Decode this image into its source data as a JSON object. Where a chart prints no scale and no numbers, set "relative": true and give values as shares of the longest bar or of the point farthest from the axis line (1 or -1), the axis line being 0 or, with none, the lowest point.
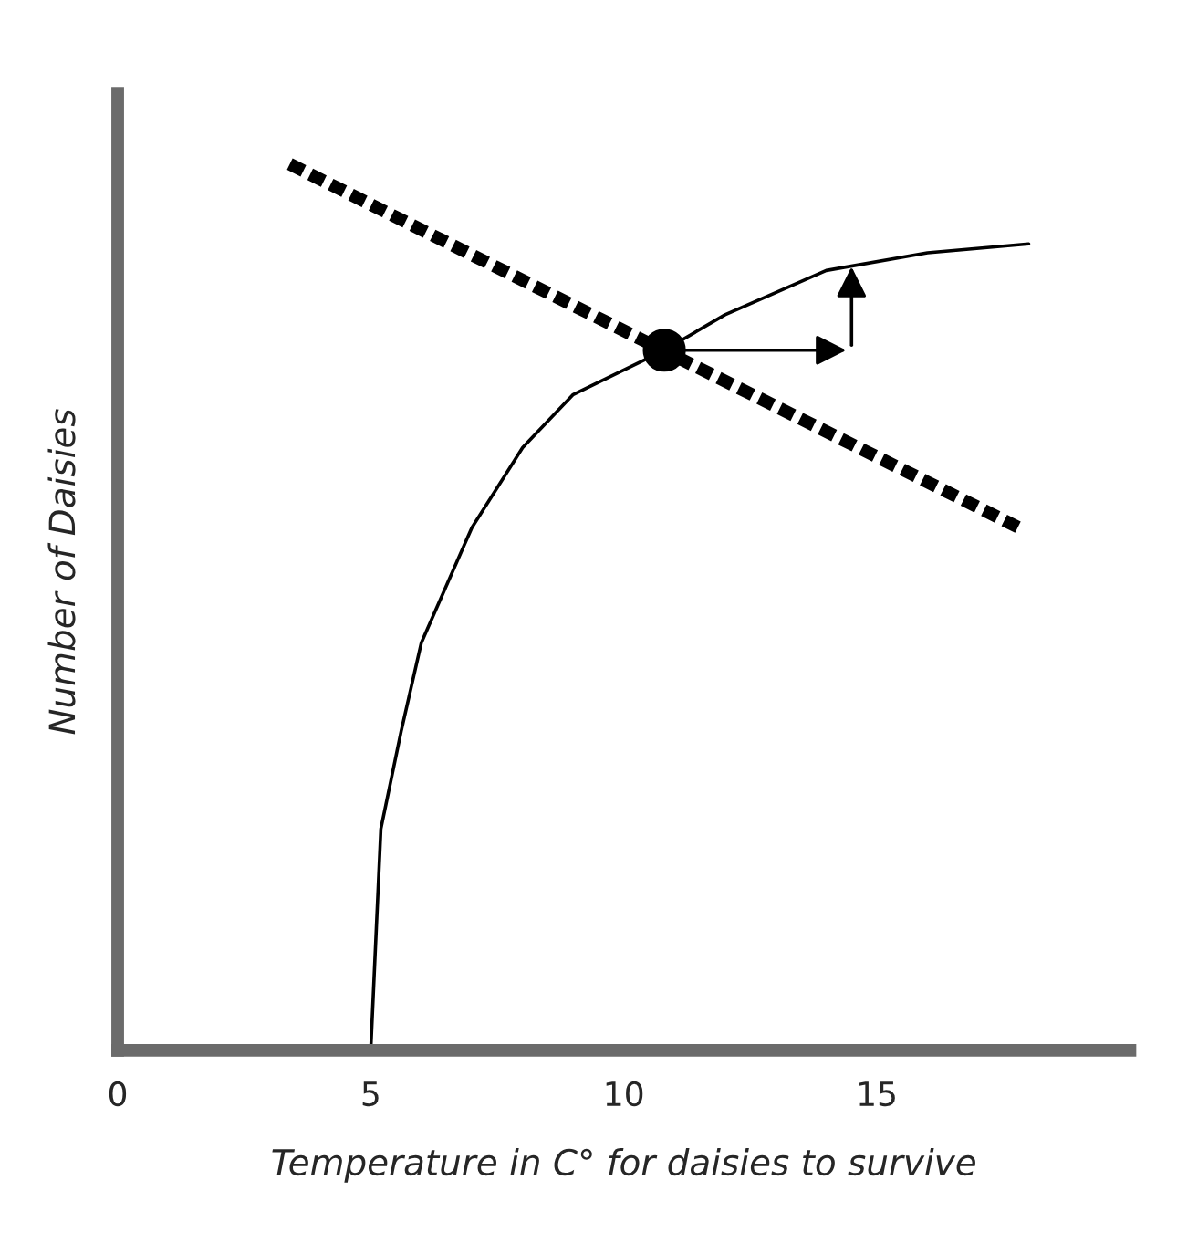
{
  "chart_data": {
    "type": "line",
    "relative": true,
    "xlabel": "Temperature in C° for daisies to survive",
    "ylabel": "Number of Daisies",
    "xlim": [
      0,
      20
    ],
    "xticks": [
      0,
      5,
      10,
      15
    ],
    "grid": false,
    "series": [
      {
        "color": "#000000",
        "line_style": "solid",
        "x": [
          5,
          5.2,
          5.6,
          6,
          7,
          8,
          9,
          10.8,
          12,
          14,
          16,
          18
        ],
        "values": [
          0,
          0.25,
          0.36,
          0.46,
          0.59,
          0.68,
          0.74,
          0.79,
          0.83,
          0.88,
          0.9,
          0.91
        ]
      },
      {
        "color": "#000000",
        "line_style": "dotted",
        "x": [
          3.4,
          17.8
        ],
        "values": [
          1,
          0.59
        ]
      },
      {
        "type": "scatter",
        "color": "#000000",
        "marker": "circle",
        "x": [
          10.8
        ],
        "values": [
          0.79
        ]
      }
    ]
  }
}
